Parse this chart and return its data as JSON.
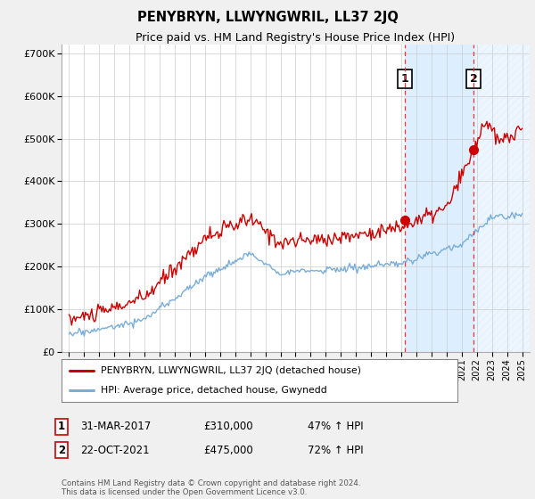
{
  "title": "PENYBRYN, LLWYNGWRIL, LL37 2JQ",
  "subtitle": "Price paid vs. HM Land Registry's House Price Index (HPI)",
  "ylabel_ticks": [
    "£0",
    "£100K",
    "£200K",
    "£300K",
    "£400K",
    "£500K",
    "£600K",
    "£700K"
  ],
  "ytick_values": [
    0,
    100000,
    200000,
    300000,
    400000,
    500000,
    600000,
    700000
  ],
  "ylim": [
    0,
    720000
  ],
  "xlim_start": 1994.5,
  "xlim_end": 2025.5,
  "red_color": "#cc0000",
  "blue_color": "#7aadda",
  "vline_color": "#ee3333",
  "shade_color": "#ddeeff",
  "marker1_date": 2017.25,
  "marker2_date": 2021.8,
  "marker1_price": 310000,
  "marker2_price": 475000,
  "annotation1_label": "1",
  "annotation2_label": "2",
  "legend_red_label": "PENYBRYN, LLWYNGWRIL, LL37 2JQ (detached house)",
  "legend_blue_label": "HPI: Average price, detached house, Gwynedd",
  "table_row1": [
    "1",
    "31-MAR-2017",
    "£310,000",
    "47% ↑ HPI"
  ],
  "table_row2": [
    "2",
    "22-OCT-2021",
    "£475,000",
    "72% ↑ HPI"
  ],
  "footnote": "Contains HM Land Registry data © Crown copyright and database right 2024.\nThis data is licensed under the Open Government Licence v3.0.",
  "background_color": "#f0f0f0",
  "plot_bg_color": "#ffffff"
}
